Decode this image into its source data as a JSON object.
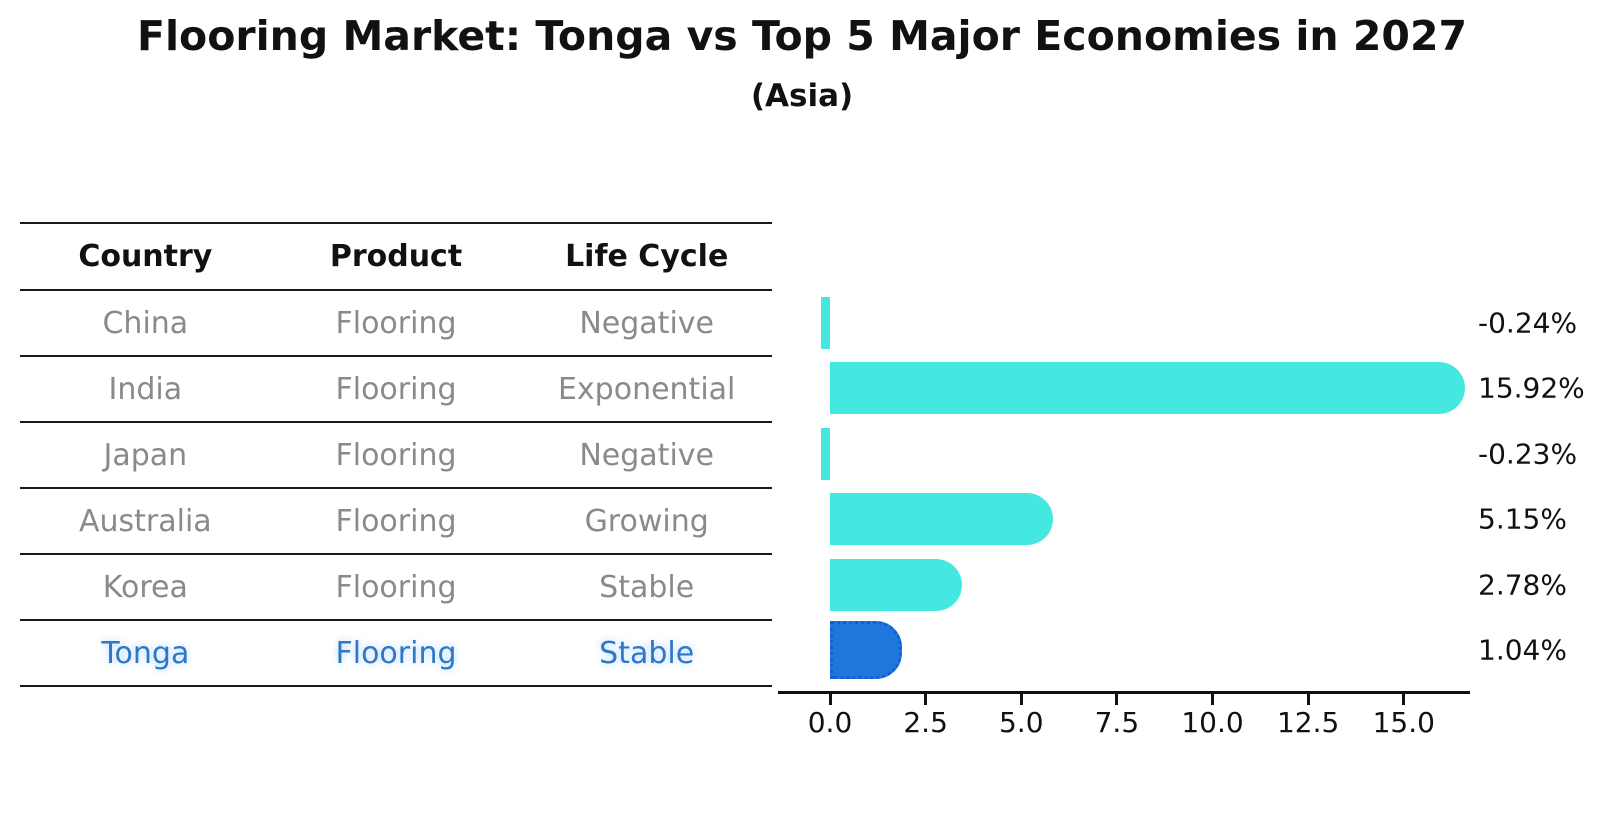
{
  "title": "Flooring Market: Tonga vs Top 5 Major Economies in 2027",
  "subtitle": "(Asia)",
  "table": {
    "columns": [
      "Country",
      "Product",
      "Life Cycle"
    ],
    "rows": [
      {
        "country": "China",
        "product": "Flooring",
        "life_cycle": "Negative"
      },
      {
        "country": "India",
        "product": "Flooring",
        "life_cycle": "Exponential"
      },
      {
        "country": "Japan",
        "product": "Flooring",
        "life_cycle": "Negative"
      },
      {
        "country": "Australia",
        "product": "Flooring",
        "life_cycle": "Growing"
      },
      {
        "country": "Korea",
        "product": "Flooring",
        "life_cycle": "Stable"
      },
      {
        "country": "Tonga",
        "product": "Flooring",
        "life_cycle": "Stable"
      }
    ]
  },
  "chart_data": {
    "type": "bar",
    "orientation": "horizontal",
    "title": "Flooring Market: Tonga vs Top 5 Major Economies in 2027",
    "subtitle": "(Asia)",
    "categories": [
      "China",
      "India",
      "Japan",
      "Australia",
      "Korea",
      "Tonga"
    ],
    "values": [
      -0.24,
      15.92,
      -0.23,
      5.15,
      2.78,
      1.04
    ],
    "value_labels": [
      "-0.24%",
      "15.92%",
      "-0.23%",
      "5.15%",
      "2.78%",
      "1.04%"
    ],
    "x_ticks": [
      0.0,
      2.5,
      5.0,
      7.5,
      10.0,
      12.5,
      15.0
    ],
    "x_tick_labels": [
      "0.0",
      "2.5",
      "5.0",
      "7.5",
      "10.0",
      "12.5",
      "15.0"
    ],
    "xlim": [
      -1.35,
      16.7
    ],
    "grid": false,
    "legend": false,
    "highlight_category": "Tonga",
    "colors": {
      "bar": "#45E8E0",
      "highlight_bar": "#1F76DD",
      "highlight_border": "#1560CC",
      "highlight_text": "#2E78C8",
      "cell_text": "#8A8A8A",
      "header_text": "#111111",
      "label_text": "#111111"
    }
  }
}
